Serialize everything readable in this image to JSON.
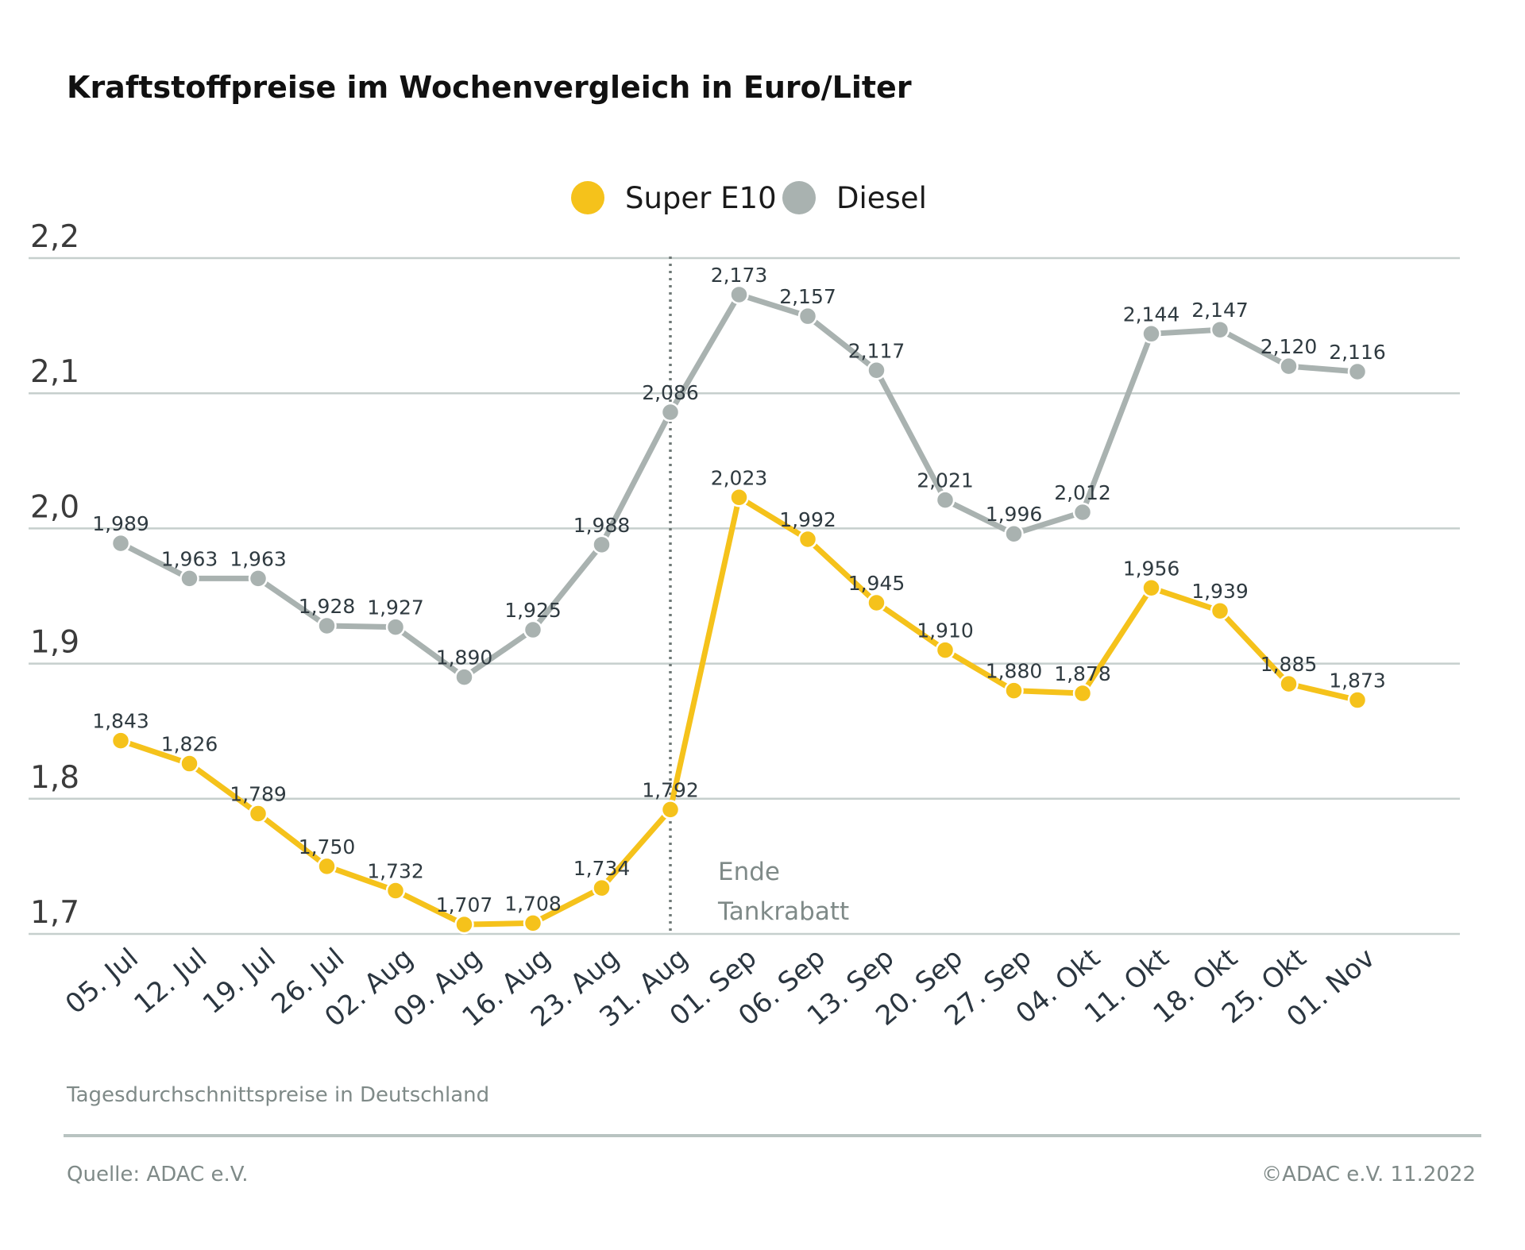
{
  "chart_data": {
    "type": "line",
    "title": "Kraftstoffpreise im Wochenvergleich in Euro/Liter",
    "categories": [
      "05. Jul",
      "12. Jul",
      "19. Jul",
      "26. Jul",
      "02. Aug",
      "09. Aug",
      "16. Aug",
      "23. Aug",
      "31. Aug",
      "01. Sep",
      "06. Sep",
      "13. Sep",
      "20. Sep",
      "27. Sep",
      "04. Okt",
      "11. Okt",
      "18. Okt",
      "25. Okt",
      "01. Nov"
    ],
    "series": [
      {
        "name": "Super E10",
        "color": "#f5c21b",
        "values": [
          1.843,
          1.826,
          1.789,
          1.75,
          1.732,
          1.707,
          1.708,
          1.734,
          1.792,
          2.023,
          1.992,
          1.945,
          1.91,
          1.88,
          1.878,
          1.956,
          1.939,
          1.885,
          1.873
        ],
        "labels": [
          "1,843",
          "1,826",
          "1,789",
          "1,750",
          "1,732",
          "1,707",
          "1,708",
          "1,734",
          "1,792",
          "2,023",
          "1,992",
          "1,945",
          "1,910",
          "1,880",
          "1,878",
          "1,956",
          "1,939",
          "1,885",
          "1,873"
        ]
      },
      {
        "name": "Diesel",
        "color": "#a9b2b0",
        "values": [
          1.989,
          1.963,
          1.963,
          1.928,
          1.927,
          1.89,
          1.925,
          1.988,
          2.086,
          2.173,
          2.157,
          2.117,
          2.021,
          1.996,
          2.012,
          2.144,
          2.147,
          2.12,
          2.116
        ],
        "labels": [
          "1,989",
          "1,963",
          "1,963",
          "1,928",
          "1,927",
          "1,890",
          "1,925",
          "1,988",
          "2,086",
          "2,173",
          "2,157",
          "2,117",
          "2,021",
          "1,996",
          "2,012",
          "2,144",
          "2,147",
          "2,120",
          "2,116"
        ]
      }
    ],
    "ylim": [
      1.7,
      2.2
    ],
    "yticks": [
      1.7,
      1.8,
      1.9,
      2.0,
      2.1,
      2.2
    ],
    "ytick_labels": [
      "1,7",
      "1,8",
      "1,9",
      "2,0",
      "2,1",
      "2,2"
    ],
    "grid": true,
    "legend_position": "top-center",
    "annotation": {
      "category": "31. Aug",
      "lines": [
        "Ende",
        "Tankrabatt"
      ]
    },
    "xlabel": "",
    "ylabel": ""
  },
  "footer": {
    "note": "Tagesdurchschnittspreise in Deutschland",
    "source": "Quelle: ADAC e.V.",
    "copyright": "©ADAC e.V.  11.2022"
  },
  "colors": {
    "grid": "#c6cfcd",
    "divider": "#b9c3c1",
    "annotation": "#7f8a88"
  }
}
